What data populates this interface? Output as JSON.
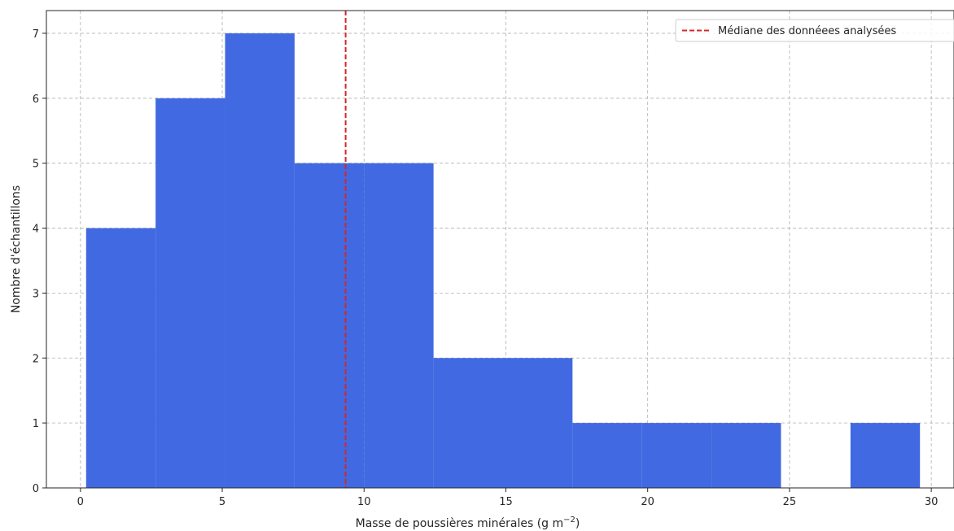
{
  "chart_data": {
    "type": "bar",
    "xlabel": "Masse de poussières minérales (g m",
    "xlabel_sup": "−2",
    "xlabel_close": ")",
    "ylabel": "Nombre d'échantillons",
    "xlim": [
      -1.2,
      30.8
    ],
    "ylim": [
      0,
      7.35
    ],
    "xticks": [
      0,
      5,
      10,
      15,
      20,
      25,
      30
    ],
    "yticks": [
      0,
      1,
      2,
      3,
      4,
      5,
      6,
      7
    ],
    "grid": true,
    "bar_color": "#4169e1",
    "bins": [
      {
        "x0": 0.2,
        "x1": 2.65,
        "count": 4
      },
      {
        "x0": 2.65,
        "x1": 5.1,
        "count": 6
      },
      {
        "x0": 5.1,
        "x1": 7.55,
        "count": 7
      },
      {
        "x0": 7.55,
        "x1": 10.0,
        "count": 5
      },
      {
        "x0": 10.0,
        "x1": 12.45,
        "count": 5
      },
      {
        "x0": 12.45,
        "x1": 14.9,
        "count": 2
      },
      {
        "x0": 14.9,
        "x1": 17.35,
        "count": 2
      },
      {
        "x0": 17.35,
        "x1": 19.8,
        "count": 1
      },
      {
        "x0": 19.8,
        "x1": 22.25,
        "count": 1
      },
      {
        "x0": 22.25,
        "x1": 24.7,
        "count": 1
      },
      {
        "x0": 24.7,
        "x1": 27.15,
        "count": 0
      },
      {
        "x0": 27.15,
        "x1": 29.6,
        "count": 1
      }
    ],
    "median": {
      "value": 9.35,
      "label": "Médiane des donnéees analysées",
      "color": "#d62728"
    },
    "legend_position": "top-right"
  }
}
